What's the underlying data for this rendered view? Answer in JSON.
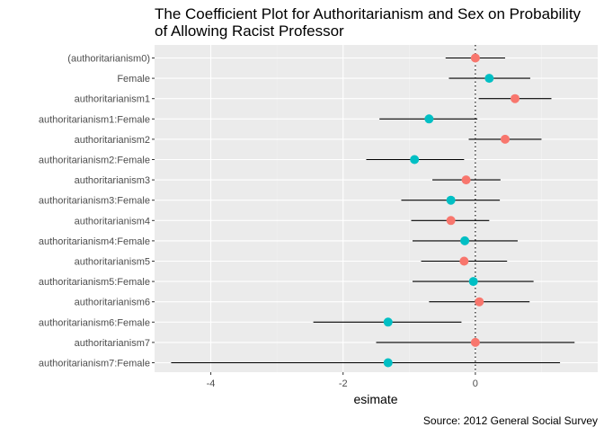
{
  "chart_data": {
    "type": "scatter",
    "title_lines": [
      "The Coefficient Plot for Authoritarianism and Sex on Probability",
      "of Allowing Racist Professor"
    ],
    "xlabel": "esimate",
    "ylabel": "",
    "caption": "Source: 2012 General Social Survey",
    "xlim": [
      -4.85,
      1.85
    ],
    "x_ticks": [
      -4,
      -2,
      0
    ],
    "x_tick_labels": [
      "-4",
      "-2",
      "0"
    ],
    "reference_line_x": 0,
    "grid": true,
    "legend": "none",
    "colors": {
      "panel_background": "#EBEBEB",
      "grid_major": "#FFFFFF",
      "grid_minor": "#F4F4F4",
      "group_main": "#F8766D",
      "group_female": "#00BFC4",
      "error_bar": "#000000",
      "axis_text": "#4D4D4D",
      "title_text": "#000000"
    },
    "terms": [
      {
        "label": "(authoritarianism0)",
        "estimate": 0.0,
        "low": -0.45,
        "high": 0.45,
        "group": "main"
      },
      {
        "label": "Female",
        "estimate": 0.21,
        "low": -0.4,
        "high": 0.83,
        "group": "female"
      },
      {
        "label": "authoritarianism1",
        "estimate": 0.6,
        "low": 0.05,
        "high": 1.15,
        "group": "main"
      },
      {
        "label": "authoritarianism1:Female",
        "estimate": -0.7,
        "low": -1.45,
        "high": 0.03,
        "group": "female"
      },
      {
        "label": "authoritarianism2",
        "estimate": 0.45,
        "low": -0.1,
        "high": 1.0,
        "group": "main"
      },
      {
        "label": "authoritarianism2:Female",
        "estimate": -0.92,
        "low": -1.65,
        "high": -0.17,
        "group": "female"
      },
      {
        "label": "authoritarianism3",
        "estimate": -0.14,
        "low": -0.65,
        "high": 0.38,
        "group": "main"
      },
      {
        "label": "authoritarianism3:Female",
        "estimate": -0.37,
        "low": -1.12,
        "high": 0.37,
        "group": "female"
      },
      {
        "label": "authoritarianism4",
        "estimate": -0.37,
        "low": -0.97,
        "high": 0.21,
        "group": "main"
      },
      {
        "label": "authoritarianism4:Female",
        "estimate": -0.16,
        "low": -0.95,
        "high": 0.64,
        "group": "female"
      },
      {
        "label": "authoritarianism5",
        "estimate": -0.17,
        "low": -0.82,
        "high": 0.48,
        "group": "main"
      },
      {
        "label": "authoritarianism5:Female",
        "estimate": -0.03,
        "low": -0.95,
        "high": 0.88,
        "group": "female"
      },
      {
        "label": "authoritarianism6",
        "estimate": 0.06,
        "low": -0.7,
        "high": 0.82,
        "group": "main"
      },
      {
        "label": "authoritarianism6:Female",
        "estimate": -1.32,
        "low": -2.45,
        "high": -0.21,
        "group": "female"
      },
      {
        "label": "authoritarianism7",
        "estimate": 0.0,
        "low": -1.5,
        "high": 1.5,
        "group": "main"
      },
      {
        "label": "authoritarianism7:Female",
        "estimate": -1.32,
        "low": -4.6,
        "high": 1.28,
        "group": "female"
      }
    ]
  }
}
